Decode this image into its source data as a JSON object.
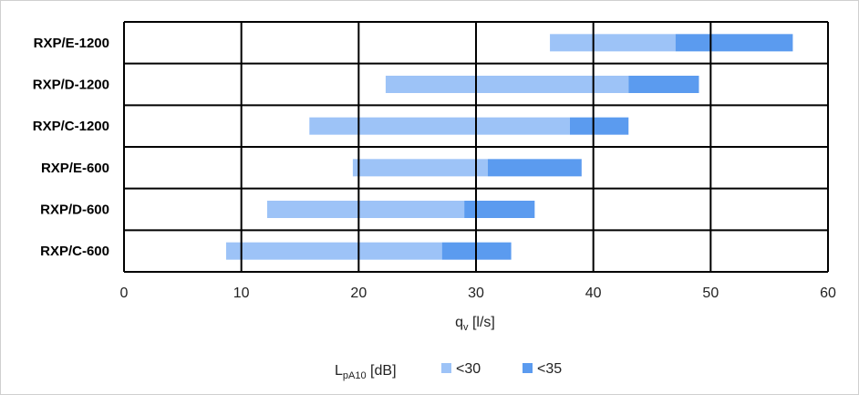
{
  "chart_data": {
    "type": "bar",
    "orientation": "horizontal-range",
    "categories": [
      "RXP/E-1200",
      "RXP/D-1200",
      "RXP/C-1200",
      "RXP/E-600",
      "RXP/D-600",
      "RXP/C-600"
    ],
    "series": [
      {
        "name": "<30",
        "color": "#9dc3f7",
        "ranges": [
          [
            36.3,
            47
          ],
          [
            22.3,
            43
          ],
          [
            15.8,
            38
          ],
          [
            19.5,
            31
          ],
          [
            12.2,
            29
          ],
          [
            8.7,
            27.1
          ]
        ]
      },
      {
        "name": "<35",
        "color": "#5b9bef",
        "ranges": [
          [
            47,
            57
          ],
          [
            43,
            49
          ],
          [
            38,
            43
          ],
          [
            31,
            39
          ],
          [
            29,
            35
          ],
          [
            27.1,
            33
          ]
        ]
      }
    ],
    "xlabel_main": "q",
    "xlabel_sub": "v",
    "xlabel_unit": " [l/s]",
    "xlim": [
      0,
      60
    ],
    "xticks": [
      "0",
      "10",
      "20",
      "30",
      "40",
      "50",
      "60"
    ],
    "grid": true,
    "legend": {
      "title_main": "L",
      "title_sub": "pA10",
      "title_unit": " [dB]",
      "placement": "bottom"
    }
  }
}
